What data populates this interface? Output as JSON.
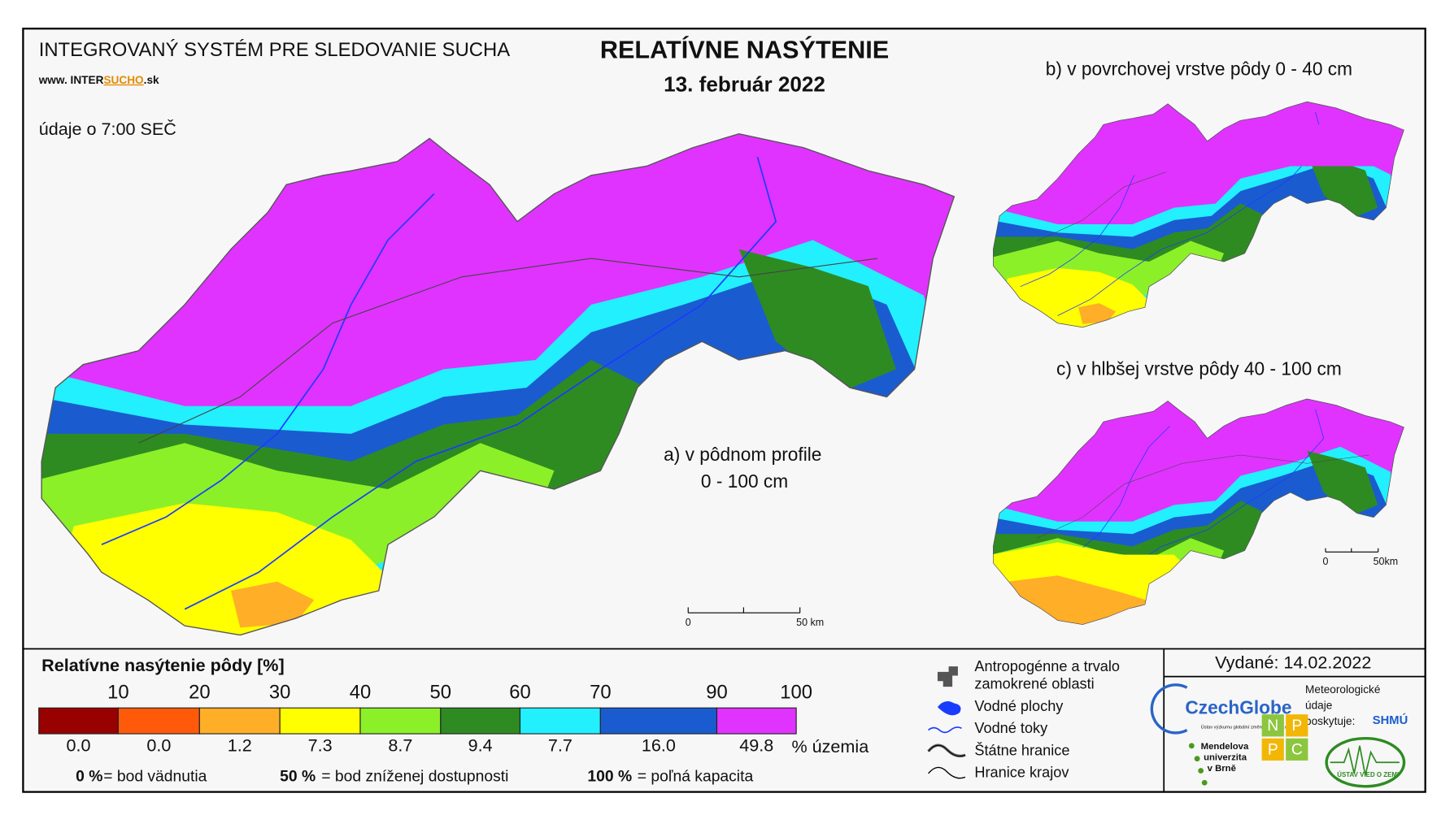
{
  "header": {
    "system": "INTEGROVANÝ SYSTÉM PRE SLEDOVANIE SUCHA",
    "website": {
      "prefix": "www. INTER",
      "highlight": "SUCHO",
      "suffix": ".sk"
    },
    "time_note": "údaje o 7:00 SEČ",
    "title": "RELATÍVNE NASÝTENIE",
    "date": "13. február 2022"
  },
  "maps": {
    "a": {
      "label_line1": "a) v pôdnom profile",
      "label_line2": "0 - 100 cm",
      "scale_zero": "0",
      "scale_distance": "50 km"
    },
    "b": {
      "label": "b) v povrchovej vrstve pôdy 0 - 40 cm"
    },
    "c": {
      "label": "c) v hlbšej vrstve pôdy 40 - 100 cm",
      "scale_zero": "0",
      "scale_distance": "50km"
    }
  },
  "legend": {
    "title": "Relatívne nasýtenie pôdy [%]",
    "thresholds": [
      "10",
      "20",
      "30",
      "40",
      "50",
      "60",
      "70",
      "90",
      "100"
    ],
    "classes": [
      {
        "color": "#990000",
        "share": "0.0"
      },
      {
        "color": "#ff5a0a",
        "share": "0.0"
      },
      {
        "color": "#ffae28",
        "share": "1.2"
      },
      {
        "color": "#ffff00",
        "share": "7.3"
      },
      {
        "color": "#8cf028",
        "share": "8.7"
      },
      {
        "color": "#2e8b22",
        "share": "9.4"
      },
      {
        "color": "#22f0ff",
        "share": "7.7"
      },
      {
        "color": "#1a5ccf",
        "share": "16.0"
      },
      {
        "color": "#e033ff",
        "share": "49.8"
      }
    ],
    "share_unit": "% územia",
    "notes": [
      {
        "value": "0 %",
        "text": "= bod vädnutia"
      },
      {
        "value": "50 %",
        "text": "= bod zníženej dostupnosti"
      },
      {
        "value": "100 %",
        "text": "= poľná kapacita"
      }
    ]
  },
  "symbols": [
    {
      "line1": "Antropogénne a trvalo",
      "line2": "zamokrené oblasti"
    },
    {
      "line1": "Vodné plochy"
    },
    {
      "line1": "Vodné toky"
    },
    {
      "line1": "Štátne hranice"
    },
    {
      "line1": "Hranice krajov"
    }
  ],
  "footer": {
    "issued": "Vydané: 14.02.2022",
    "czechglobe": "CzechGlobe",
    "czechglobe_sub": "Ústav výzkumu globální změny AV ČR, v.v.i.",
    "meteo_line1": "Meteorologické",
    "meteo_line2": "údaje",
    "meteo_line3": "poskytuje:",
    "shmu": "SHMÚ",
    "mendel_line1": "Mendelova",
    "mendel_line2": "univerzita",
    "mendel_line3": "v Brně",
    "nppc": [
      "N",
      "P",
      "P",
      "C"
    ],
    "uvz": "ÚSTAV VIED O ZEMI"
  }
}
